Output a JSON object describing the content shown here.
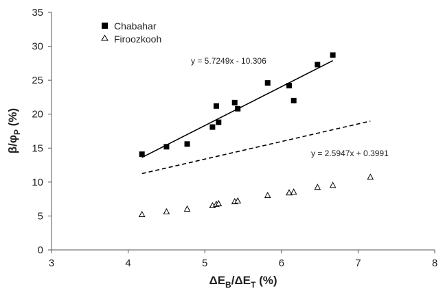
{
  "chart_data": {
    "type": "scatter",
    "title": "",
    "xlabel": {
      "main": "ΔE",
      "sub1": "B",
      "mid": "/ΔE",
      "sub2": "T",
      "unit": " (%)"
    },
    "ylabel": {
      "main": "β/φ",
      "sub": "P",
      "unit": " (%)"
    },
    "xlim": [
      3,
      8
    ],
    "ylim": [
      0,
      35
    ],
    "xticks": [
      3,
      4,
      5,
      6,
      7,
      8
    ],
    "yticks": [
      0,
      5,
      10,
      15,
      20,
      25,
      30,
      35
    ],
    "grid": false,
    "legend_position": "top-left",
    "series": [
      {
        "name": "Chabahar",
        "marker": "square-filled",
        "color": "#000000",
        "points": [
          [
            4.18,
            14.1
          ],
          [
            4.5,
            15.2
          ],
          [
            4.77,
            15.6
          ],
          [
            5.1,
            18.1
          ],
          [
            5.15,
            21.2
          ],
          [
            5.18,
            18.8
          ],
          [
            5.39,
            21.7
          ],
          [
            5.43,
            20.8
          ],
          [
            5.82,
            24.6
          ],
          [
            6.1,
            24.2
          ],
          [
            6.16,
            22.0
          ],
          [
            6.47,
            27.3
          ],
          [
            6.67,
            28.7
          ]
        ],
        "trendline": {
          "slope": 5.7249,
          "intercept": -10.306,
          "x_range": [
            4.18,
            6.67
          ],
          "style": "solid",
          "label": "y = 5.7249x - 10.306"
        }
      },
      {
        "name": "Firoozkooh",
        "marker": "triangle-open",
        "color": "#000000",
        "points": [
          [
            4.18,
            5.2
          ],
          [
            4.5,
            5.6
          ],
          [
            4.77,
            6.0
          ],
          [
            5.1,
            6.5
          ],
          [
            5.15,
            6.7
          ],
          [
            5.18,
            6.8
          ],
          [
            5.39,
            7.1
          ],
          [
            5.43,
            7.2
          ],
          [
            5.82,
            8.0
          ],
          [
            6.1,
            8.4
          ],
          [
            6.16,
            8.5
          ],
          [
            6.47,
            9.2
          ],
          [
            6.67,
            9.5
          ],
          [
            7.16,
            10.7
          ]
        ],
        "trendline": {
          "slope": 2.5947,
          "intercept": 0.3991,
          "x_range": [
            4.18,
            7.16
          ],
          "style": "dashed",
          "label": "y = 2.5947x + 0.3991"
        }
      }
    ]
  }
}
